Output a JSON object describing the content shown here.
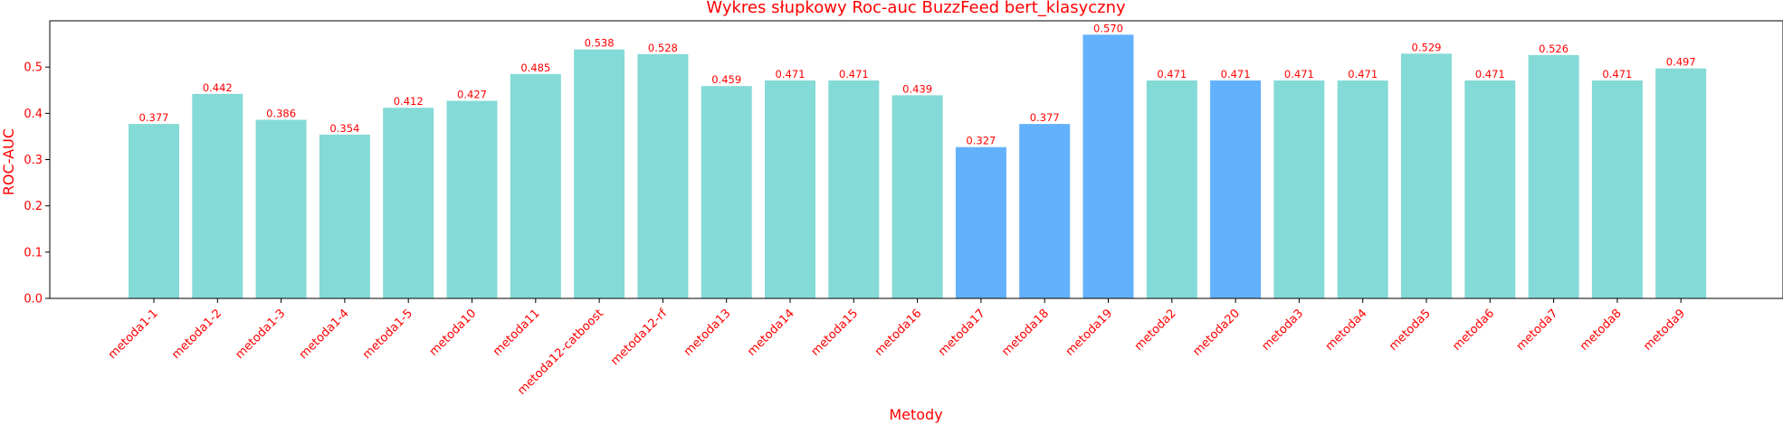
{
  "chart_data": {
    "type": "bar",
    "title": "Wykres słupkowy Roc-auc BuzzFeed bert_klasyczny",
    "xlabel": "Metody",
    "ylabel": "ROC-AUC",
    "ylim": [
      0,
      0.6
    ],
    "yticks": [
      0.0,
      0.1,
      0.2,
      0.3,
      0.4,
      0.5
    ],
    "ytick_labels": [
      "0.0",
      "0.1",
      "0.2",
      "0.3",
      "0.4",
      "0.5"
    ],
    "grid": false,
    "categories": [
      "metoda1-1",
      "metoda1-2",
      "metoda1-3",
      "metoda1-4",
      "metoda1-5",
      "metoda10",
      "metoda11",
      "metoda12-catboost",
      "metoda12-rf",
      "metoda13",
      "metoda14",
      "metoda15",
      "metoda16",
      "metoda17",
      "metoda18",
      "metoda19",
      "metoda2",
      "metoda20",
      "metoda3",
      "metoda4",
      "metoda5",
      "metoda6",
      "metoda7",
      "metoda8",
      "metoda9"
    ],
    "values": [
      0.377,
      0.442,
      0.386,
      0.354,
      0.412,
      0.427,
      0.485,
      0.538,
      0.528,
      0.459,
      0.471,
      0.471,
      0.439,
      0.327,
      0.377,
      0.57,
      0.471,
      0.471,
      0.471,
      0.471,
      0.529,
      0.471,
      0.526,
      0.471,
      0.497
    ],
    "value_labels": [
      "0.377",
      "0.442",
      "0.386",
      "0.354",
      "0.412",
      "0.427",
      "0.485",
      "0.538",
      "0.528",
      "0.459",
      "0.471",
      "0.471",
      "0.439",
      "0.327",
      "0.377",
      "0.570",
      "0.471",
      "0.471",
      "0.471",
      "0.471",
      "0.529",
      "0.471",
      "0.526",
      "0.471",
      "0.497"
    ],
    "bar_colors": [
      "#84dad6",
      "#84dad6",
      "#84dad6",
      "#84dad6",
      "#84dad6",
      "#84dad6",
      "#84dad6",
      "#84dad6",
      "#84dad6",
      "#84dad6",
      "#84dad6",
      "#84dad6",
      "#84dad6",
      "#63b1fd",
      "#63b1fd",
      "#63b1fd",
      "#84dad6",
      "#63b1fd",
      "#84dad6",
      "#84dad6",
      "#84dad6",
      "#84dad6",
      "#84dad6",
      "#84dad6",
      "#84dad6"
    ],
    "text_color": "#ff0000"
  }
}
